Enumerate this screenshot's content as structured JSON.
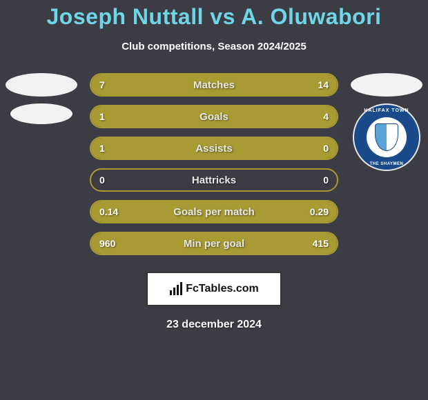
{
  "title": {
    "player1": "Joseph Nuttall",
    "vs": "vs",
    "player2": "A. Oluwabori",
    "color": "#6fd6e8",
    "fontsize": 32
  },
  "subtitle": "Club competitions, Season 2024/2025",
  "background_color": "#3c3c44",
  "bar_style": {
    "fill_color": "#a99a33",
    "border_color": "#a99a33",
    "empty_color": "#3c3c44",
    "text_color": "#ffffff",
    "height": 34,
    "border_radius": 18,
    "border_width": 2,
    "label_fontsize": 15,
    "value_fontsize": 14
  },
  "stats": [
    {
      "label": "Matches",
      "left_val": "7",
      "right_val": "14",
      "left_pct": 33,
      "right_pct": 67
    },
    {
      "label": "Goals",
      "left_val": "1",
      "right_val": "4",
      "left_pct": 20,
      "right_pct": 80
    },
    {
      "label": "Assists",
      "left_val": "1",
      "right_val": "0",
      "left_pct": 100,
      "right_pct": 0
    },
    {
      "label": "Hattricks",
      "left_val": "0",
      "right_val": "0",
      "left_pct": 0,
      "right_pct": 0
    },
    {
      "label": "Goals per match",
      "left_val": "0.14",
      "right_val": "0.29",
      "left_pct": 33,
      "right_pct": 67
    },
    {
      "label": "Min per goal",
      "left_val": "960",
      "right_val": "415",
      "left_pct": 70,
      "right_pct": 30
    }
  ],
  "badges": {
    "left": {
      "type": "placeholder",
      "count": 2
    },
    "right": {
      "type": "placeholder_and_crest",
      "crest": {
        "name": "FC Halifax Town",
        "outer_color": "#1a4a8a",
        "inner_color": "#ffffff",
        "shield_colors": [
          "#5aa3d8",
          "#ffffff"
        ],
        "top_text": "HALIFAX TOWN",
        "bottom_text": "THE SHAYMEN"
      }
    }
  },
  "footer": {
    "brand": "FcTables.com",
    "box_bg": "#ffffff",
    "box_border": "#333333",
    "date": "23 december 2024"
  }
}
